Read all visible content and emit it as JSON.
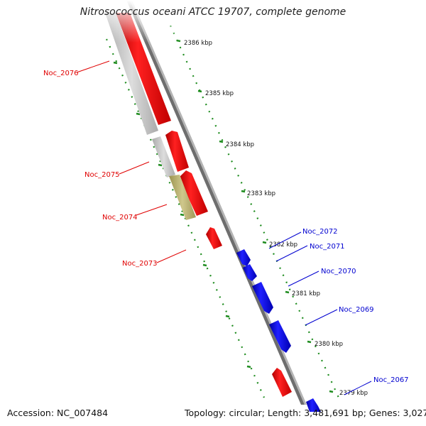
{
  "title": "Nitrosococcus oceani ATCC 19707, complete genome",
  "accession": "Accession: NC_007484",
  "topology": "Topology: circular; Length: 3,481,691 bp; Genes: 3,027",
  "colors": {
    "forward_gene": "#ff0000",
    "reverse_gene": "#0000ff",
    "pseudo_gene": "#c8c8c8",
    "rna_gene": "#b4ac6c",
    "backbone": "#808080",
    "scale": "#1e8c1e"
  },
  "scale_labels": [
    "2386 kbp",
    "2385 kbp",
    "2384 kbp",
    "2383 kbp",
    "2382 kbp",
    "2381 kbp",
    "2380 kbp",
    "2379 kbp"
  ],
  "red_labels": [
    "Noc_2076",
    "Noc_2075",
    "Noc_2074",
    "Noc_2073"
  ],
  "blue_labels": [
    "Noc_2072",
    "Noc_2071",
    "Noc_2070",
    "Noc_2069",
    "Noc_2067"
  ]
}
